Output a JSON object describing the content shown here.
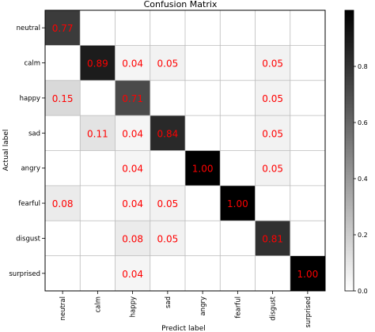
{
  "chart_data": {
    "type": "heatmap",
    "title": "Confusion Matrix",
    "xlabel": "Predict label",
    "ylabel": "Actual label",
    "row_labels": [
      "neutral",
      "calm",
      "happy",
      "sad",
      "angry",
      "fearful",
      "disgust",
      "surprised"
    ],
    "col_labels": [
      "neutral",
      "calm",
      "happy",
      "sad",
      "angry",
      "fearful",
      "disgust",
      "surprised"
    ],
    "matrix": [
      [
        0.77,
        null,
        null,
        null,
        null,
        null,
        null,
        null
      ],
      [
        null,
        0.89,
        0.04,
        0.05,
        null,
        null,
        0.05,
        null
      ],
      [
        0.15,
        null,
        0.71,
        null,
        null,
        null,
        0.05,
        null
      ],
      [
        null,
        0.11,
        0.04,
        0.84,
        null,
        null,
        0.05,
        null
      ],
      [
        null,
        null,
        0.04,
        null,
        1.0,
        null,
        0.05,
        null
      ],
      [
        0.08,
        null,
        0.04,
        0.05,
        null,
        1.0,
        null,
        null
      ],
      [
        null,
        null,
        0.08,
        0.05,
        null,
        null,
        0.81,
        null
      ],
      [
        null,
        null,
        0.04,
        null,
        null,
        null,
        null,
        1.0
      ]
    ],
    "value_color": "#ff0000",
    "colormap": "Greys",
    "grid": true,
    "colorbar": {
      "ticks": [
        "0.0",
        "0.2",
        "0.4",
        "0.6",
        "0.8"
      ],
      "range": [
        0,
        1
      ]
    }
  }
}
